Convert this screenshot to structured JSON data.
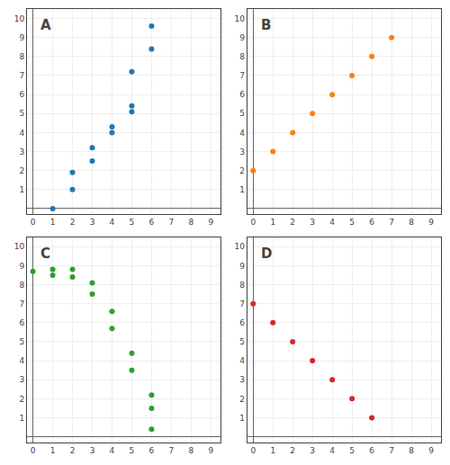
{
  "chart_data": [
    {
      "type": "scatter",
      "annotations": [
        "A"
      ],
      "x": [
        1,
        2,
        2,
        3,
        3,
        4,
        4,
        5,
        5,
        5,
        6,
        6
      ],
      "values": [
        0,
        1,
        1.9,
        2.5,
        3.2,
        4.0,
        4.3,
        5.1,
        5.4,
        7.2,
        8.4,
        9.6
      ],
      "xlim": [
        -0.3,
        9.5
      ],
      "ylim": [
        -0.3,
        10.5
      ],
      "xticks": [
        0,
        1,
        2,
        3,
        4,
        5,
        6,
        7,
        8,
        9
      ],
      "yticks": [
        1,
        2,
        3,
        4,
        5,
        6,
        7,
        8,
        9,
        10
      ],
      "grid": true
    },
    {
      "type": "scatter",
      "annotations": [
        "B"
      ],
      "x": [
        0,
        1,
        2,
        3,
        4,
        5,
        6,
        7
      ],
      "values": [
        2,
        3,
        4,
        5,
        6,
        7,
        8,
        9
      ],
      "xlim": [
        -0.3,
        9.5
      ],
      "ylim": [
        -0.3,
        10.5
      ],
      "xticks": [
        0,
        1,
        2,
        3,
        4,
        5,
        6,
        7,
        8,
        9
      ],
      "yticks": [
        1,
        2,
        3,
        4,
        5,
        6,
        7,
        8,
        9,
        10
      ],
      "grid": true
    },
    {
      "type": "scatter",
      "annotations": [
        "C"
      ],
      "x": [
        0,
        1,
        1,
        2,
        2,
        3,
        3,
        4,
        4,
        5,
        5,
        6,
        6,
        6
      ],
      "values": [
        8.7,
        8.5,
        8.8,
        8.4,
        8.8,
        8.1,
        7.5,
        6.6,
        5.7,
        4.4,
        3.5,
        2.2,
        1.5,
        0.4
      ],
      "xlim": [
        -0.3,
        9.5
      ],
      "ylim": [
        -0.3,
        10.5
      ],
      "xticks": [
        0,
        1,
        2,
        3,
        4,
        5,
        6,
        7,
        8,
        9
      ],
      "yticks": [
        1,
        2,
        3,
        4,
        5,
        6,
        7,
        8,
        9,
        10
      ],
      "grid": true
    },
    {
      "type": "scatter",
      "annotations": [
        "D"
      ],
      "x": [
        0,
        1,
        2,
        3,
        4,
        5,
        6
      ],
      "values": [
        7,
        6,
        5,
        4,
        3,
        2,
        1
      ],
      "xlim": [
        -0.3,
        9.5
      ],
      "ylim": [
        -0.3,
        10.5
      ],
      "xticks": [
        0,
        1,
        2,
        3,
        4,
        5,
        6,
        7,
        8,
        9
      ],
      "yticks": [
        1,
        2,
        3,
        4,
        5,
        6,
        7,
        8,
        9,
        10
      ],
      "grid": true
    }
  ]
}
